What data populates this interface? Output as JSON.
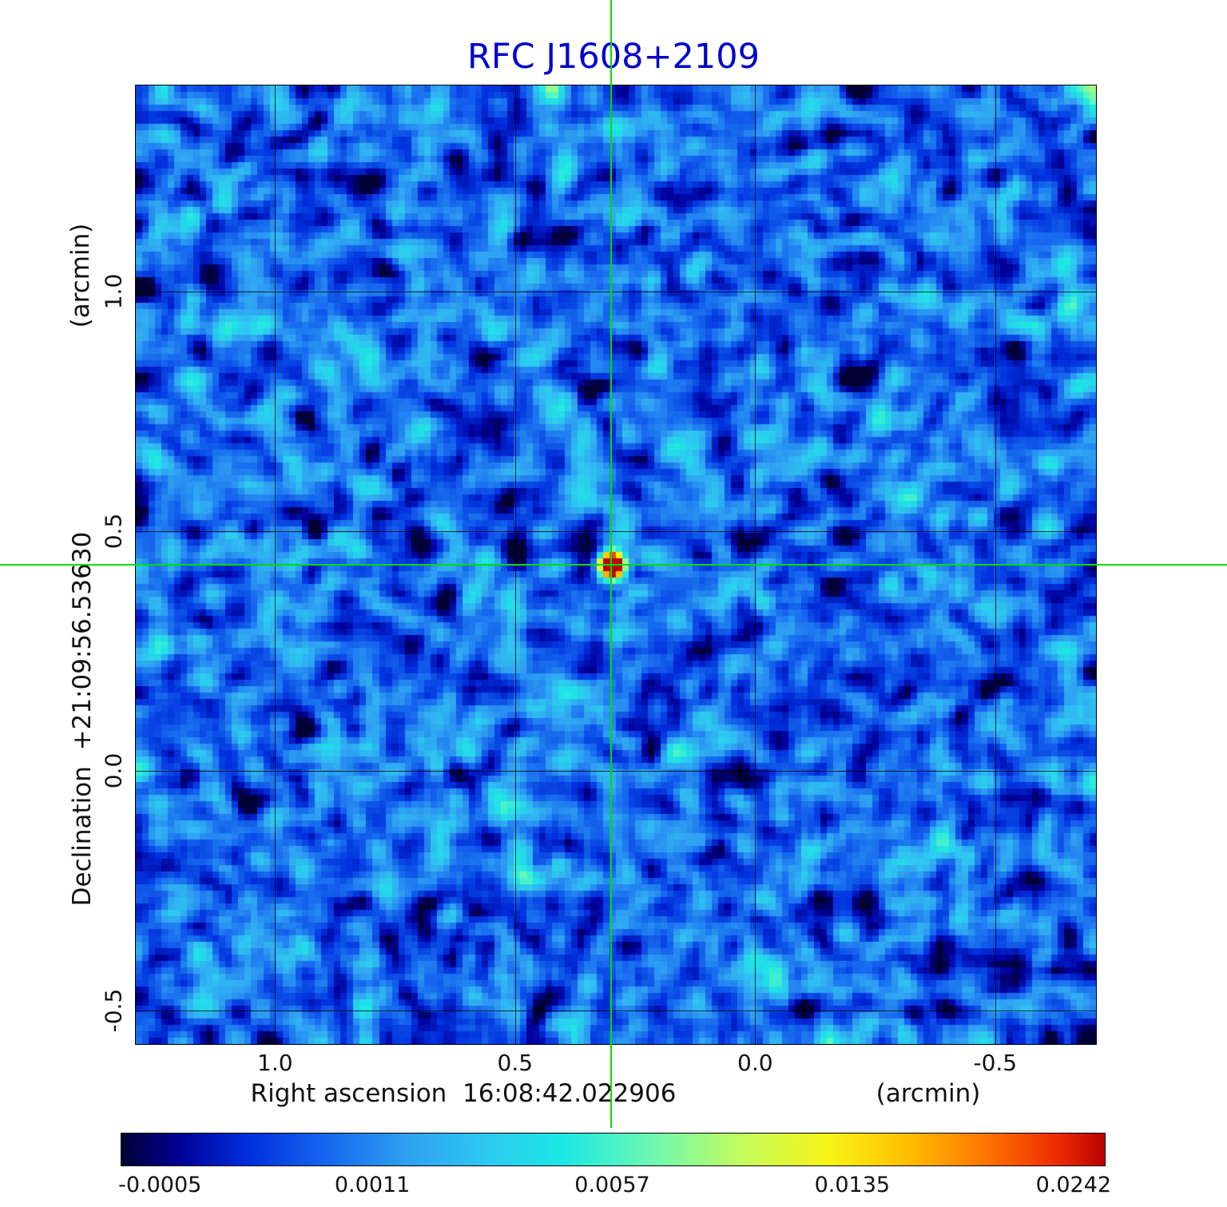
{
  "title": "RFC J1608+2109",
  "title_color": "#0000cc",
  "crosshair_color": "#00dd00",
  "axes": {
    "y_unit": "(arcmin)",
    "y_label": "Declination  +21:09:56.53630",
    "x_label": "Right ascension  16:08:42.022906",
    "x_unit": "(arcmin)",
    "x_ticks": [
      "1.0",
      "0.5",
      "0.0",
      "-0.5"
    ],
    "y_ticks": [
      "1.0",
      "0.5",
      "0.0",
      "-0.5"
    ]
  },
  "colorbar": {
    "ticks": [
      "-0.0005",
      "0.0011",
      "0.0057",
      "0.0135",
      "0.0242"
    ]
  },
  "chart_data": {
    "type": "heatmap",
    "title": "RFC J1608+2109",
    "xlabel": "Right ascension 16:08:42.022906 (arcmin)",
    "ylabel": "Declination +21:09:56.53630 (arcmin)",
    "x_tick_values": [
      1.0,
      0.5,
      0.0,
      -0.5
    ],
    "y_tick_values": [
      1.0,
      0.5,
      0.0,
      -0.5
    ],
    "x_range": [
      1.29,
      -0.71
    ],
    "y_range": [
      -0.57,
      1.43
    ],
    "grid": true,
    "legend": "horizontal-colorbar-bottom",
    "colorbar_tick_values": [
      -0.0005,
      0.0011,
      0.0057,
      0.0135,
      0.0242
    ],
    "value_range": [
      -0.0005,
      0.0242
    ],
    "source": {
      "x_arcmin": 0.3,
      "y_arcmin": 0.43,
      "peak": 0.0242
    },
    "noise": {
      "seed": 20240,
      "grid": 150,
      "base": 0.21,
      "spread": 1.3
    },
    "colormap_stops": [
      [
        0.0,
        "#000033"
      ],
      [
        0.06,
        "#000099"
      ],
      [
        0.13,
        "#0030dd"
      ],
      [
        0.21,
        "#1668ee"
      ],
      [
        0.29,
        "#2fa0f2"
      ],
      [
        0.37,
        "#2ec8f0"
      ],
      [
        0.45,
        "#1ce8e4"
      ],
      [
        0.54,
        "#6ef8b2"
      ],
      [
        0.63,
        "#c2fc5e"
      ],
      [
        0.72,
        "#f8f416"
      ],
      [
        0.8,
        "#ffbe00"
      ],
      [
        0.88,
        "#ff7300"
      ],
      [
        0.95,
        "#ee2d00"
      ],
      [
        1.0,
        "#bb0000"
      ]
    ]
  }
}
